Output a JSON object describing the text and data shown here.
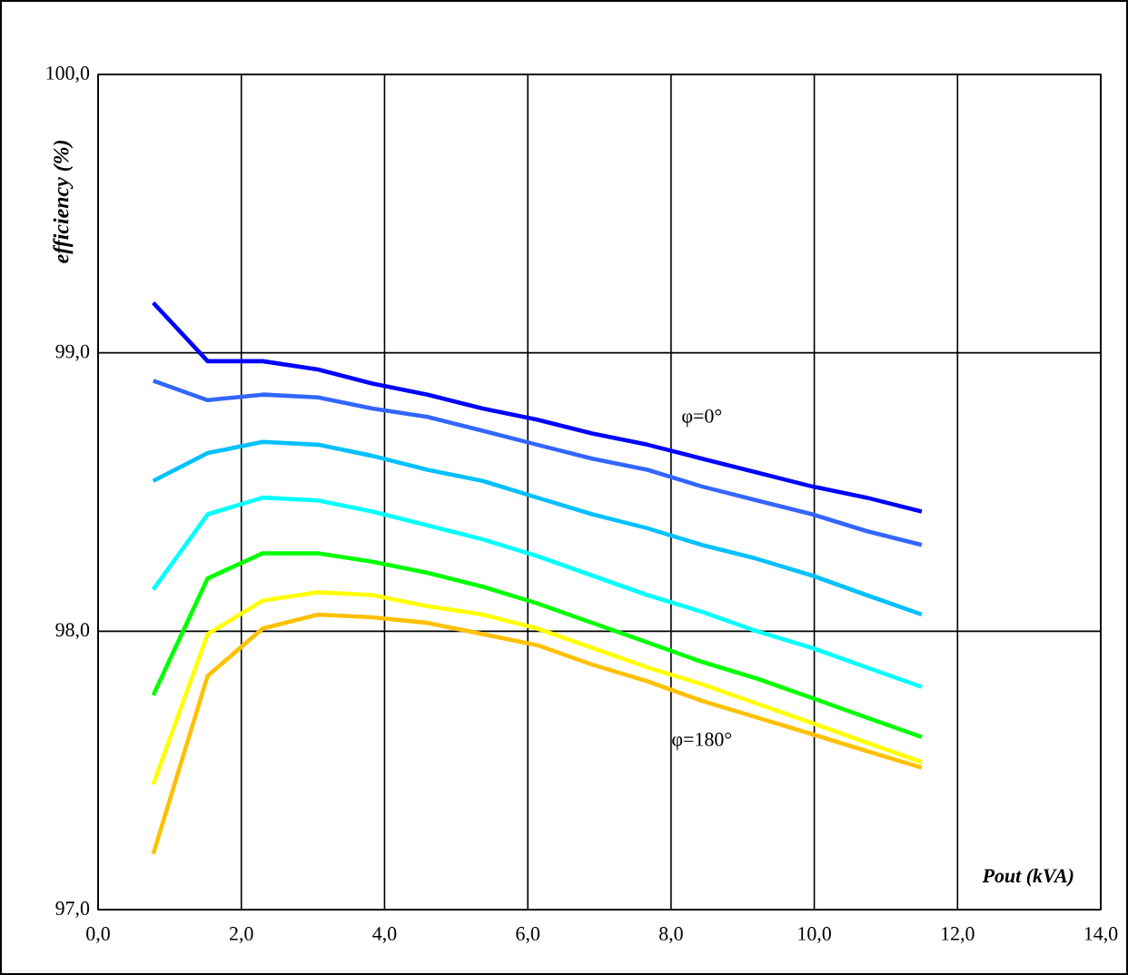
{
  "chart_data": {
    "type": "line",
    "xlabel": "Pout (kVA)",
    "ylabel": "efficiency (%)",
    "x": [
      0.77,
      1.53,
      2.3,
      3.07,
      3.83,
      4.6,
      5.37,
      6.13,
      6.9,
      7.67,
      8.43,
      9.2,
      9.97,
      10.73,
      11.5
    ],
    "series": [
      {
        "color": "#0000ff",
        "values": [
          99.18,
          98.97,
          98.97,
          98.94,
          98.89,
          98.85,
          98.8,
          98.76,
          98.71,
          98.67,
          98.62,
          98.57,
          98.52,
          98.48,
          98.43
        ]
      },
      {
        "color": "#3366ff",
        "values": [
          98.9,
          98.83,
          98.85,
          98.84,
          98.8,
          98.77,
          98.72,
          98.67,
          98.62,
          98.58,
          98.52,
          98.47,
          98.42,
          98.36,
          98.31
        ]
      },
      {
        "color": "#00c0ff",
        "values": [
          98.54,
          98.64,
          98.68,
          98.67,
          98.63,
          98.58,
          98.54,
          98.48,
          98.42,
          98.37,
          98.31,
          98.26,
          98.2,
          98.13,
          98.06
        ]
      },
      {
        "color": "#00ffff",
        "values": [
          98.15,
          98.42,
          98.48,
          98.47,
          98.43,
          98.38,
          98.33,
          98.27,
          98.2,
          98.13,
          98.07,
          98.0,
          97.94,
          97.87,
          97.8
        ]
      },
      {
        "color": "#00ff00",
        "values": [
          97.77,
          98.19,
          98.28,
          98.28,
          98.25,
          98.21,
          98.16,
          98.1,
          98.03,
          97.96,
          97.89,
          97.83,
          97.76,
          97.69,
          97.62
        ]
      },
      {
        "color": "#ffff00",
        "values": [
          97.45,
          97.99,
          98.11,
          98.14,
          98.13,
          98.09,
          98.06,
          98.01,
          97.94,
          97.87,
          97.81,
          97.74,
          97.67,
          97.6,
          97.53
        ]
      },
      {
        "color": "#ffc000",
        "values": [
          97.2,
          97.84,
          98.01,
          98.06,
          98.05,
          98.03,
          97.99,
          97.95,
          97.88,
          97.82,
          97.75,
          97.69,
          97.63,
          97.57,
          97.51
        ]
      }
    ],
    "annotations": [
      "φ=0°",
      "φ=180°"
    ],
    "xlim": [
      0,
      14
    ],
    "ylim": [
      97,
      100
    ],
    "xticks": [
      {
        "value": 0,
        "label": "0,0"
      },
      {
        "value": 2,
        "label": "2,0"
      },
      {
        "value": 4,
        "label": "4,0"
      },
      {
        "value": 6,
        "label": "6,0"
      },
      {
        "value": 8,
        "label": "8,0"
      },
      {
        "value": 10,
        "label": "10,0"
      },
      {
        "value": 12,
        "label": "12,0"
      },
      {
        "value": 14,
        "label": "14,0"
      }
    ],
    "yticks": [
      {
        "value": 97,
        "label": "97,0"
      },
      {
        "value": 98,
        "label": "98,0"
      },
      {
        "value": 99,
        "label": "99,0"
      },
      {
        "value": 100,
        "label": "100,0"
      }
    ],
    "grid": true,
    "marker": "none",
    "line_style": "solid"
  }
}
